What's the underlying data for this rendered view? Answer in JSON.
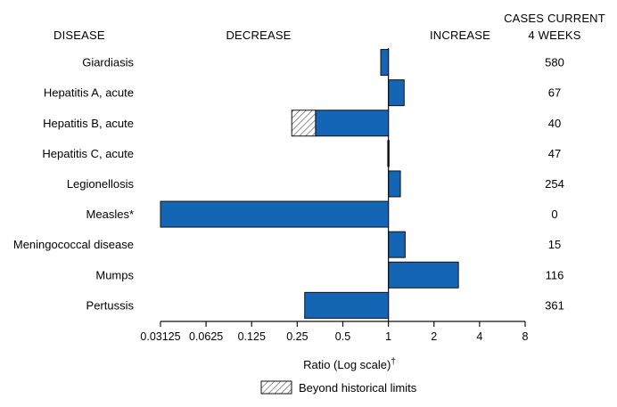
{
  "chart_data": {
    "type": "bar",
    "orientation": "horizontal",
    "scale": "log2",
    "headers": {
      "disease": "DISEASE",
      "decrease": "DECREASE",
      "increase": "INCREASE",
      "cases_line1": "CASES CURRENT",
      "cases_line2": "4 WEEKS"
    },
    "categories": [
      "Giardiasis",
      "Hepatitis A, acute",
      "Hepatitis B, acute",
      "Hepatitis C, acute",
      "Legionellosis",
      "Measles*",
      "Meningococcal disease",
      "Mumps",
      "Pertussis"
    ],
    "series": [
      {
        "name": "Ratio",
        "values": [
          0.89,
          1.27,
          0.33,
          0.99,
          1.2,
          0.03125,
          1.29,
          2.9,
          0.28
        ]
      }
    ],
    "beyond_historical_limits": [
      null,
      null,
      0.23,
      null,
      null,
      null,
      null,
      null,
      null
    ],
    "cases_current_4_weeks": [
      "580",
      "67",
      "40",
      "47",
      "254",
      "0",
      "15",
      "116",
      "361"
    ],
    "x_ticks": [
      0.03125,
      0.0625,
      0.125,
      0.25,
      0.5,
      1,
      2,
      4,
      8
    ],
    "x_tick_labels": [
      "0.03125",
      "0.0625",
      "0.125",
      "0.25",
      "0.5",
      "1",
      "2",
      "4",
      "8"
    ],
    "xlim": [
      0.03125,
      8
    ],
    "xlabel": "Ratio (Log scale)",
    "xlabel_suffix": "†",
    "legend": {
      "label": "Beyond historical limits",
      "position": "bottom-center"
    },
    "colors": {
      "bar": "#1565b5",
      "bar_stroke": "#111111",
      "axis": "#111111"
    }
  }
}
